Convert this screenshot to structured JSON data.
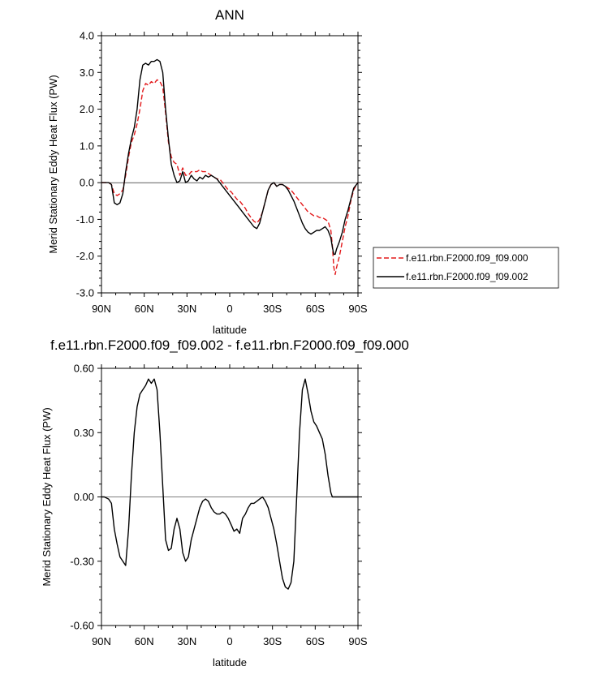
{
  "chart_data": [
    {
      "type": "line",
      "title": "ANN",
      "xlabel": "latitude",
      "ylabel": "Merid Stationary Eddy Heat Flux (PW)",
      "xlim": [
        90,
        -90
      ],
      "ylim": [
        -3.0,
        4.0
      ],
      "x_ticks": [
        {
          "value": 90,
          "label": "90N"
        },
        {
          "value": 60,
          "label": "60N"
        },
        {
          "value": 30,
          "label": "30N"
        },
        {
          "value": 0,
          "label": "0"
        },
        {
          "value": -30,
          "label": "30S"
        },
        {
          "value": -60,
          "label": "60S"
        },
        {
          "value": -90,
          "label": "90S"
        }
      ],
      "y_ticks": [
        {
          "value": 4,
          "label": "4.0"
        },
        {
          "value": 3,
          "label": "3.0"
        },
        {
          "value": 2,
          "label": "2.0"
        },
        {
          "value": 1,
          "label": "1.0"
        },
        {
          "value": 0,
          "label": "0.0"
        },
        {
          "value": -1,
          "label": "-1.0"
        },
        {
          "value": -2,
          "label": "-2.0"
        },
        {
          "value": -3,
          "label": "-3.0"
        }
      ],
      "legend": {
        "placement": "right"
      },
      "series": [
        {
          "name": "f.e11.rbn.F2000.f09_f09.000",
          "color": "#e31a1c",
          "dash": "dashed",
          "x": [
            90,
            87,
            85,
            83,
            81,
            79,
            77,
            75,
            73,
            71,
            69,
            67,
            65,
            63,
            61,
            59,
            57,
            55,
            53,
            51,
            49,
            47,
            45,
            43,
            41,
            39,
            37,
            35,
            33,
            31,
            29,
            27,
            25,
            23,
            21,
            19,
            17,
            15,
            13,
            11,
            9,
            7,
            5,
            3,
            1,
            -1,
            -3,
            -5,
            -7,
            -9,
            -11,
            -13,
            -15,
            -17,
            -19,
            -21,
            -23,
            -25,
            -27,
            -29,
            -31,
            -33,
            -35,
            -37,
            -39,
            -41,
            -43,
            -45,
            -47,
            -49,
            -51,
            -53,
            -55,
            -57,
            -59,
            -61,
            -63,
            -65,
            -67,
            -69,
            -71,
            -72,
            -73,
            -74,
            -75,
            -77,
            -79,
            -81,
            -83,
            -85,
            -87,
            -89,
            -90
          ],
          "y": [
            0.0,
            0.0,
            0.0,
            -0.05,
            -0.3,
            -0.35,
            -0.3,
            -0.2,
            0.2,
            0.7,
            1.1,
            1.3,
            1.6,
            2.0,
            2.5,
            2.7,
            2.65,
            2.75,
            2.7,
            2.8,
            2.75,
            2.6,
            1.9,
            1.1,
            0.7,
            0.55,
            0.5,
            0.2,
            0.4,
            0.2,
            0.2,
            0.3,
            0.3,
            0.3,
            0.35,
            0.3,
            0.3,
            0.25,
            0.2,
            0.15,
            0.1,
            0.1,
            0.0,
            -0.1,
            -0.2,
            -0.25,
            -0.35,
            -0.45,
            -0.5,
            -0.6,
            -0.7,
            -0.85,
            -0.95,
            -1.05,
            -1.1,
            -1.0,
            -0.8,
            -0.5,
            -0.2,
            -0.05,
            0.0,
            -0.1,
            -0.05,
            -0.05,
            -0.1,
            -0.15,
            -0.2,
            -0.3,
            -0.4,
            -0.5,
            -0.6,
            -0.7,
            -0.8,
            -0.85,
            -0.9,
            -0.9,
            -0.95,
            -0.95,
            -1.0,
            -1.05,
            -1.3,
            -1.7,
            -2.3,
            -2.5,
            -2.3,
            -2.0,
            -1.6,
            -1.2,
            -0.9,
            -0.5,
            -0.2,
            -0.05,
            0.0
          ]
        },
        {
          "name": "f.e11.rbn.F2000.f09_f09.002",
          "color": "#000000",
          "dash": "solid",
          "x": [
            90,
            87,
            85,
            83,
            81,
            79,
            77,
            75,
            73,
            71,
            69,
            67,
            65,
            63,
            61,
            59,
            57,
            55,
            53,
            51,
            49,
            47,
            45,
            43,
            41,
            39,
            37,
            35,
            33,
            31,
            29,
            27,
            25,
            23,
            21,
            19,
            17,
            15,
            13,
            11,
            9,
            7,
            5,
            3,
            1,
            -1,
            -3,
            -5,
            -7,
            -9,
            -11,
            -13,
            -15,
            -17,
            -19,
            -21,
            -23,
            -25,
            -27,
            -29,
            -31,
            -33,
            -35,
            -37,
            -39,
            -41,
            -43,
            -45,
            -47,
            -49,
            -51,
            -53,
            -55,
            -57,
            -59,
            -61,
            -63,
            -65,
            -67,
            -69,
            -71,
            -72,
            -73,
            -74,
            -75,
            -77,
            -79,
            -81,
            -83,
            -85,
            -87,
            -89,
            -90
          ],
          "y": [
            0.0,
            0.0,
            0.0,
            -0.05,
            -0.55,
            -0.6,
            -0.55,
            -0.3,
            0.3,
            0.8,
            1.2,
            1.5,
            2.0,
            2.8,
            3.2,
            3.25,
            3.2,
            3.3,
            3.3,
            3.35,
            3.3,
            3.0,
            2.0,
            1.2,
            0.5,
            0.2,
            0.0,
            0.05,
            0.3,
            0.0,
            0.05,
            0.2,
            0.1,
            0.05,
            0.15,
            0.1,
            0.2,
            0.15,
            0.2,
            0.15,
            0.1,
            0.0,
            -0.1,
            -0.2,
            -0.3,
            -0.4,
            -0.5,
            -0.6,
            -0.7,
            -0.8,
            -0.9,
            -1.0,
            -1.1,
            -1.2,
            -1.25,
            -1.1,
            -0.8,
            -0.5,
            -0.2,
            -0.05,
            0.0,
            -0.1,
            -0.05,
            -0.05,
            -0.1,
            -0.2,
            -0.35,
            -0.5,
            -0.7,
            -0.9,
            -1.1,
            -1.25,
            -1.35,
            -1.4,
            -1.35,
            -1.3,
            -1.3,
            -1.25,
            -1.2,
            -1.3,
            -1.5,
            -1.75,
            -1.95,
            -1.95,
            -1.8,
            -1.6,
            -1.35,
            -1.0,
            -0.75,
            -0.45,
            -0.15,
            -0.05,
            0.0
          ]
        }
      ]
    },
    {
      "type": "line",
      "title": "f.e11.rbn.F2000.f09_f09.002 - f.e11.rbn.F2000.f09_f09.000",
      "xlabel": "latitude",
      "ylabel": "Merid Stationary Eddy Heat Flux (PW)",
      "xlim": [
        90,
        -90
      ],
      "ylim": [
        -0.6,
        0.6
      ],
      "x_ticks": [
        {
          "value": 90,
          "label": "90N"
        },
        {
          "value": 60,
          "label": "60N"
        },
        {
          "value": 30,
          "label": "30N"
        },
        {
          "value": 0,
          "label": "0"
        },
        {
          "value": -30,
          "label": "30S"
        },
        {
          "value": -60,
          "label": "60S"
        },
        {
          "value": -90,
          "label": "90S"
        }
      ],
      "y_ticks": [
        {
          "value": 0.6,
          "label": "0.60"
        },
        {
          "value": 0.3,
          "label": "0.30"
        },
        {
          "value": 0.0,
          "label": "0.00"
        },
        {
          "value": -0.3,
          "label": "-0.30"
        },
        {
          "value": -0.6,
          "label": "-0.60"
        }
      ],
      "series": [
        {
          "color": "#000000",
          "dash": "solid",
          "x": [
            90,
            88,
            85,
            83,
            81,
            79,
            77,
            75,
            73,
            71,
            69,
            67,
            65,
            63,
            61,
            59,
            57,
            55,
            53,
            51,
            49,
            47,
            45,
            43,
            41,
            39,
            37,
            35,
            33,
            31,
            29,
            27,
            25,
            23,
            21,
            19,
            17,
            15,
            13,
            11,
            9,
            7,
            5,
            3,
            1,
            -1,
            -3,
            -5,
            -7,
            -9,
            -11,
            -13,
            -15,
            -17,
            -19,
            -21,
            -23,
            -25,
            -27,
            -29,
            -31,
            -33,
            -35,
            -37,
            -39,
            -41,
            -43,
            -45,
            -47,
            -49,
            -51,
            -53,
            -55,
            -57,
            -59,
            -61,
            -63,
            -65,
            -67,
            -69,
            -71,
            -72,
            -73,
            -74,
            -75,
            -77,
            -79,
            -81,
            -83,
            -85,
            -87,
            -89,
            -90
          ],
          "y": [
            0.0,
            0.0,
            -0.01,
            -0.03,
            -0.15,
            -0.22,
            -0.28,
            -0.3,
            -0.32,
            -0.15,
            0.1,
            0.3,
            0.42,
            0.48,
            0.5,
            0.52,
            0.55,
            0.53,
            0.55,
            0.5,
            0.3,
            0.05,
            -0.2,
            -0.25,
            -0.24,
            -0.15,
            -0.1,
            -0.15,
            -0.26,
            -0.3,
            -0.28,
            -0.2,
            -0.15,
            -0.1,
            -0.05,
            -0.02,
            -0.01,
            -0.02,
            -0.05,
            -0.07,
            -0.08,
            -0.08,
            -0.07,
            -0.08,
            -0.1,
            -0.13,
            -0.16,
            -0.15,
            -0.17,
            -0.1,
            -0.08,
            -0.05,
            -0.03,
            -0.03,
            -0.02,
            -0.01,
            0.0,
            -0.02,
            -0.05,
            -0.1,
            -0.15,
            -0.22,
            -0.3,
            -0.38,
            -0.42,
            -0.43,
            -0.4,
            -0.3,
            0.0,
            0.3,
            0.5,
            0.55,
            0.48,
            0.4,
            0.35,
            0.33,
            0.3,
            0.27,
            0.2,
            0.1,
            0.02,
            0.0,
            0.0,
            0.0,
            0.0,
            0.0,
            0.0,
            0.0,
            0.0,
            0.0,
            0.0,
            0.0,
            0.0
          ]
        }
      ]
    }
  ]
}
